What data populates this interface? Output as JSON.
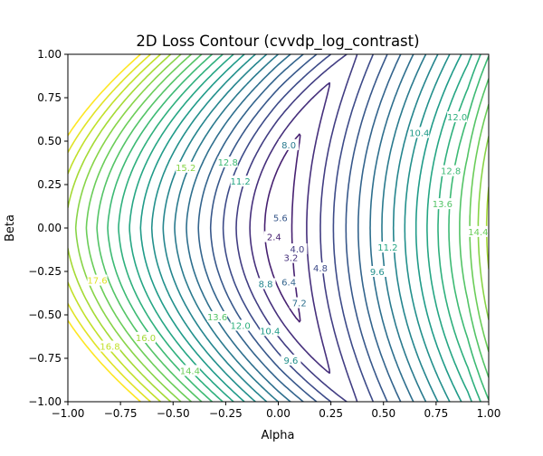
{
  "chart_data": {
    "type": "contour",
    "title": "2D Loss Contour (cvvdp_log_contrast)",
    "xlabel": "Alpha",
    "ylabel": "Beta",
    "xlim": [
      -1.0,
      1.0
    ],
    "ylim": [
      -1.0,
      1.0
    ],
    "xticks": [
      "−1.00",
      "−0.75",
      "−0.50",
      "−0.25",
      "0.00",
      "0.25",
      "0.50",
      "0.75",
      "1.00"
    ],
    "yticks": [
      "−1.00",
      "−0.75",
      "−0.50",
      "−0.25",
      "0.00",
      "0.25",
      "0.50",
      "0.75",
      "1.00"
    ],
    "colormap": "viridis",
    "level_range": [
      0.8,
      18.4
    ],
    "level_step": 0.8,
    "contour_labels": [
      {
        "text": "15.2",
        "x": -0.44,
        "y": 0.35
      },
      {
        "text": "12.8",
        "x": -0.24,
        "y": 0.38
      },
      {
        "text": "11.2",
        "x": -0.18,
        "y": 0.27
      },
      {
        "text": "8.0",
        "x": 0.05,
        "y": 0.48
      },
      {
        "text": "5.6",
        "x": 0.01,
        "y": 0.06
      },
      {
        "text": "3.2",
        "x": 0.06,
        "y": -0.17
      },
      {
        "text": "4.0",
        "x": 0.09,
        "y": -0.12
      },
      {
        "text": "4.8",
        "x": 0.2,
        "y": -0.23
      },
      {
        "text": "2.4",
        "x": -0.02,
        "y": -0.05
      },
      {
        "text": "6.4",
        "x": 0.05,
        "y": -0.31
      },
      {
        "text": "7.2",
        "x": 0.1,
        "y": -0.43
      },
      {
        "text": "8.8",
        "x": -0.06,
        "y": -0.32
      },
      {
        "text": "9.6",
        "x": 0.47,
        "y": -0.25
      },
      {
        "text": "10.4",
        "x": 0.67,
        "y": 0.55
      },
      {
        "text": "11.2",
        "x": 0.52,
        "y": -0.11
      },
      {
        "text": "12.0",
        "x": 0.85,
        "y": 0.64
      },
      {
        "text": "12.8",
        "x": 0.82,
        "y": 0.33
      },
      {
        "text": "13.6",
        "x": 0.78,
        "y": 0.14
      },
      {
        "text": "14.4",
        "x": 0.95,
        "y": -0.02
      },
      {
        "text": "17.6",
        "x": -0.86,
        "y": -0.3
      },
      {
        "text": "16.8",
        "x": -0.8,
        "y": -0.68
      },
      {
        "text": "16.0",
        "x": -0.63,
        "y": -0.63
      },
      {
        "text": "13.6",
        "x": -0.29,
        "y": -0.51
      },
      {
        "text": "12.0",
        "x": -0.18,
        "y": -0.56
      },
      {
        "text": "10.4",
        "x": -0.04,
        "y": -0.59
      },
      {
        "text": "14.4",
        "x": -0.42,
        "y": -0.82
      },
      {
        "text": "9.6",
        "x": 0.06,
        "y": -0.76
      }
    ]
  }
}
